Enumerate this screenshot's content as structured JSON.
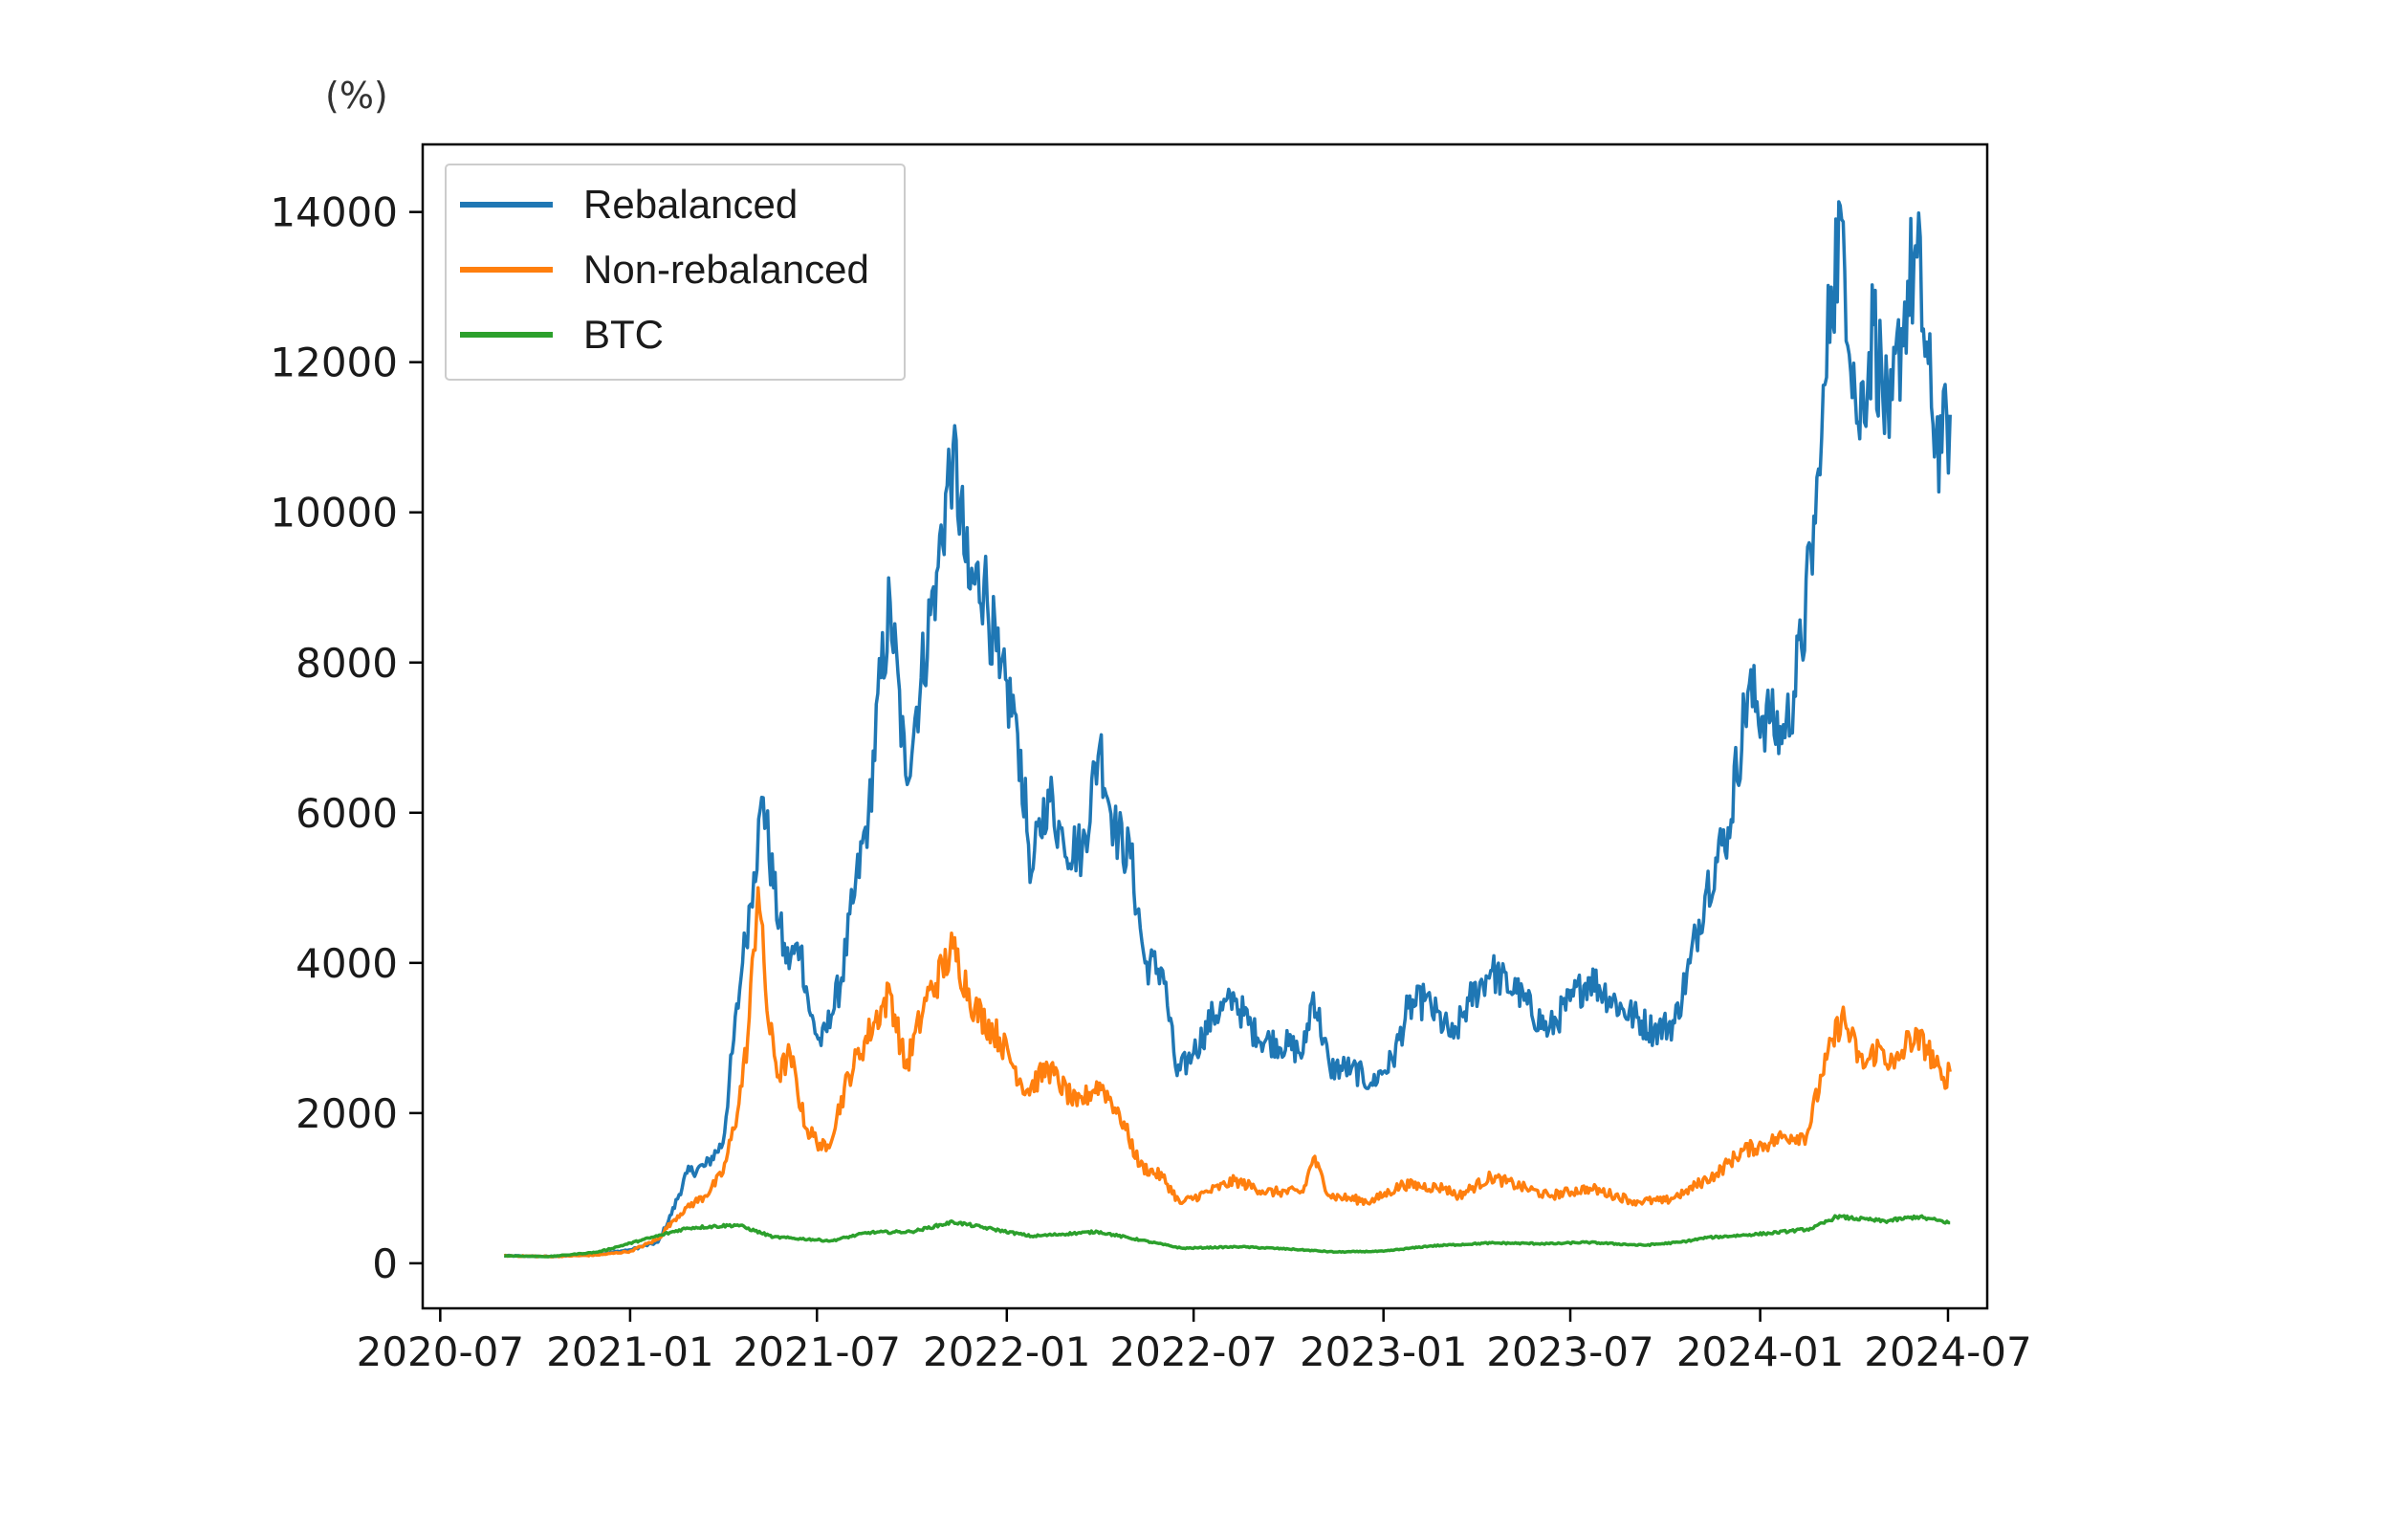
{
  "chart_data": {
    "type": "line",
    "title": "",
    "xlabel": "",
    "ylabel": "(%)",
    "ylim": [
      -600,
      14900
    ],
    "xlim": [
      "2020-06-14",
      "2024-08-08"
    ],
    "x_ticks": [
      "2020-07",
      "2021-01",
      "2021-07",
      "2022-01",
      "2022-07",
      "2023-01",
      "2023-07",
      "2024-01",
      "2024-07"
    ],
    "y_ticks": [
      0,
      2000,
      4000,
      6000,
      8000,
      10000,
      12000,
      14000
    ],
    "grid": false,
    "legend_position": "top-left",
    "series": [
      {
        "name": "Rebalanced",
        "color": "#1f77b4",
        "points": [
          [
            "2020-09-01",
            100
          ],
          [
            "2020-10-15",
            90
          ],
          [
            "2020-12-01",
            120
          ],
          [
            "2021-01-01",
            180
          ],
          [
            "2021-01-28",
            280
          ],
          [
            "2021-02-10",
            650
          ],
          [
            "2021-02-25",
            1200
          ],
          [
            "2021-03-15",
            1300
          ],
          [
            "2021-04-01",
            1600
          ],
          [
            "2021-04-10",
            2800
          ],
          [
            "2021-04-20",
            4000
          ],
          [
            "2021-05-01",
            5200
          ],
          [
            "2021-05-10",
            6200
          ],
          [
            "2021-05-20",
            5000
          ],
          [
            "2021-06-01",
            4000
          ],
          [
            "2021-06-15",
            4200
          ],
          [
            "2021-06-25",
            3300
          ],
          [
            "2021-07-05",
            2900
          ],
          [
            "2021-07-15",
            3300
          ],
          [
            "2021-07-25",
            3800
          ],
          [
            "2021-08-05",
            4800
          ],
          [
            "2021-08-20",
            6000
          ],
          [
            "2021-09-01",
            7800
          ],
          [
            "2021-09-10",
            8800
          ],
          [
            "2021-09-25",
            6500
          ],
          [
            "2021-10-10",
            7800
          ],
          [
            "2021-10-25",
            9200
          ],
          [
            "2021-11-10",
            10900
          ],
          [
            "2021-11-25",
            9000
          ],
          [
            "2021-12-10",
            9100
          ],
          [
            "2021-12-25",
            7800
          ],
          [
            "2022-01-10",
            7300
          ],
          [
            "2022-01-25",
            5200
          ],
          [
            "2022-02-10",
            6300
          ],
          [
            "2022-02-25",
            5600
          ],
          [
            "2022-03-15",
            5500
          ],
          [
            "2022-04-01",
            6900
          ],
          [
            "2022-04-15",
            5800
          ],
          [
            "2022-05-01",
            5400
          ],
          [
            "2022-05-15",
            4000
          ],
          [
            "2022-06-01",
            3900
          ],
          [
            "2022-06-15",
            2500
          ],
          [
            "2022-07-01",
            2800
          ],
          [
            "2022-07-20",
            3300
          ],
          [
            "2022-08-10",
            3500
          ],
          [
            "2022-09-01",
            3000
          ],
          [
            "2022-10-01",
            2900
          ],
          [
            "2022-10-15",
            2800
          ],
          [
            "2022-10-25",
            3600
          ],
          [
            "2022-11-10",
            2600
          ],
          [
            "2022-12-01",
            2600
          ],
          [
            "2022-12-20",
            2400
          ],
          [
            "2023-01-10",
            2700
          ],
          [
            "2023-01-25",
            3400
          ],
          [
            "2023-02-10",
            3500
          ],
          [
            "2023-03-10",
            3000
          ],
          [
            "2023-03-25",
            3500
          ],
          [
            "2023-04-15",
            3900
          ],
          [
            "2023-05-10",
            3600
          ],
          [
            "2023-06-10",
            3100
          ],
          [
            "2023-07-01",
            3500
          ],
          [
            "2023-07-20",
            3800
          ],
          [
            "2023-08-20",
            3400
          ],
          [
            "2023-09-20",
            3100
          ],
          [
            "2023-10-10",
            3200
          ],
          [
            "2023-10-25",
            4000
          ],
          [
            "2023-11-10",
            5000
          ],
          [
            "2023-12-01",
            5800
          ],
          [
            "2023-12-20",
            7600
          ],
          [
            "2024-01-10",
            7200
          ],
          [
            "2024-01-25",
            7000
          ],
          [
            "2024-02-10",
            8200
          ],
          [
            "2024-02-28",
            10500
          ],
          [
            "2024-03-10",
            13000
          ],
          [
            "2024-03-20",
            13900
          ],
          [
            "2024-04-05",
            11200
          ],
          [
            "2024-04-20",
            12500
          ],
          [
            "2024-05-05",
            11000
          ],
          [
            "2024-05-20",
            12800
          ],
          [
            "2024-06-01",
            13400
          ],
          [
            "2024-06-15",
            11400
          ],
          [
            "2024-06-25",
            10800
          ],
          [
            "2024-07-03",
            11300
          ]
        ]
      },
      {
        "name": "Non-rebalanced",
        "color": "#ff7f0e",
        "points": [
          [
            "2020-09-01",
            100
          ],
          [
            "2020-10-15",
            90
          ],
          [
            "2020-12-01",
            110
          ],
          [
            "2021-01-01",
            160
          ],
          [
            "2021-01-28",
            320
          ],
          [
            "2021-02-10",
            550
          ],
          [
            "2021-02-25",
            750
          ],
          [
            "2021-03-15",
            900
          ],
          [
            "2021-04-01",
            1200
          ],
          [
            "2021-04-15",
            2000
          ],
          [
            "2021-04-25",
            3000
          ],
          [
            "2021-05-05",
            5000
          ],
          [
            "2021-05-15",
            3200
          ],
          [
            "2021-05-25",
            2500
          ],
          [
            "2021-06-05",
            2800
          ],
          [
            "2021-06-20",
            1800
          ],
          [
            "2021-07-10",
            1500
          ],
          [
            "2021-08-01",
            2500
          ],
          [
            "2021-08-25",
            3200
          ],
          [
            "2021-09-10",
            3600
          ],
          [
            "2021-09-25",
            2600
          ],
          [
            "2021-10-15",
            3500
          ],
          [
            "2021-11-10",
            4200
          ],
          [
            "2021-12-01",
            3400
          ],
          [
            "2021-12-25",
            3000
          ],
          [
            "2022-01-20",
            2300
          ],
          [
            "2022-02-10",
            2600
          ],
          [
            "2022-03-10",
            2100
          ],
          [
            "2022-04-01",
            2400
          ],
          [
            "2022-04-20",
            2000
          ],
          [
            "2022-05-10",
            1300
          ],
          [
            "2022-06-01",
            1150
          ],
          [
            "2022-06-18",
            800
          ],
          [
            "2022-07-15",
            950
          ],
          [
            "2022-08-10",
            1100
          ],
          [
            "2022-09-10",
            950
          ],
          [
            "2022-10-15",
            950
          ],
          [
            "2022-10-25",
            1400
          ],
          [
            "2022-11-10",
            900
          ],
          [
            "2022-12-20",
            820
          ],
          [
            "2023-01-20",
            1050
          ],
          [
            "2023-03-01",
            1000
          ],
          [
            "2023-03-15",
            900
          ],
          [
            "2023-04-15",
            1150
          ],
          [
            "2023-06-10",
            900
          ],
          [
            "2023-07-20",
            1000
          ],
          [
            "2023-09-01",
            830
          ],
          [
            "2023-10-01",
            830
          ],
          [
            "2023-10-20",
            950
          ],
          [
            "2023-11-20",
            1200
          ],
          [
            "2023-12-15",
            1500
          ],
          [
            "2024-01-10",
            1600
          ],
          [
            "2024-01-25",
            1700
          ],
          [
            "2024-02-15",
            1700
          ],
          [
            "2024-03-01",
            2500
          ],
          [
            "2024-03-20",
            3300
          ],
          [
            "2024-04-10",
            2600
          ],
          [
            "2024-04-25",
            2900
          ],
          [
            "2024-05-10",
            2600
          ],
          [
            "2024-05-25",
            3000
          ],
          [
            "2024-06-10",
            2900
          ],
          [
            "2024-06-25",
            2450
          ],
          [
            "2024-07-03",
            2550
          ]
        ]
      },
      {
        "name": "BTC",
        "color": "#2ca02c",
        "points": [
          [
            "2020-09-01",
            100
          ],
          [
            "2020-10-15",
            90
          ],
          [
            "2020-12-01",
            150
          ],
          [
            "2021-01-10",
            300
          ],
          [
            "2021-02-01",
            380
          ],
          [
            "2021-02-25",
            470
          ],
          [
            "2021-04-15",
            510
          ],
          [
            "2021-05-20",
            350
          ],
          [
            "2021-07-15",
            300
          ],
          [
            "2021-08-20",
            410
          ],
          [
            "2021-10-01",
            420
          ],
          [
            "2021-11-10",
            550
          ],
          [
            "2021-12-20",
            450
          ],
          [
            "2022-01-25",
            360
          ],
          [
            "2022-03-30",
            420
          ],
          [
            "2022-05-10",
            310
          ],
          [
            "2022-06-20",
            200
          ],
          [
            "2022-08-15",
            220
          ],
          [
            "2022-10-01",
            190
          ],
          [
            "2022-11-15",
            150
          ],
          [
            "2023-01-01",
            160
          ],
          [
            "2023-02-15",
            230
          ],
          [
            "2023-04-15",
            270
          ],
          [
            "2023-06-15",
            260
          ],
          [
            "2023-07-15",
            280
          ],
          [
            "2023-09-10",
            240
          ],
          [
            "2023-10-15",
            280
          ],
          [
            "2023-11-10",
            340
          ],
          [
            "2024-01-10",
            400
          ],
          [
            "2024-02-20",
            460
          ],
          [
            "2024-03-15",
            620
          ],
          [
            "2024-04-15",
            580
          ],
          [
            "2024-05-01",
            560
          ],
          [
            "2024-06-01",
            620
          ],
          [
            "2024-07-03",
            540
          ]
        ]
      }
    ]
  }
}
